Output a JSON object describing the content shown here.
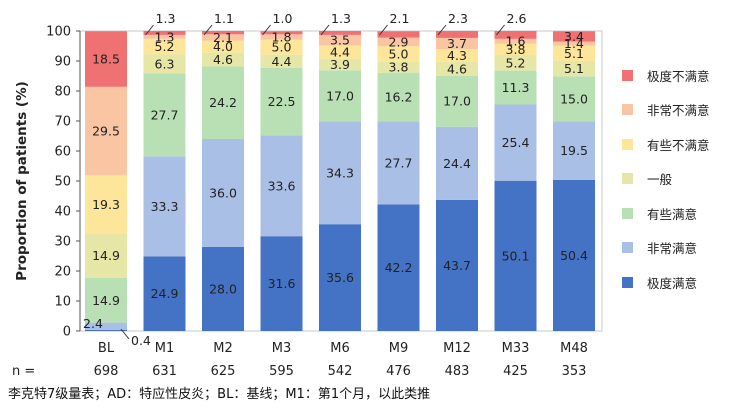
{
  "chart_data": {
    "type": "bar",
    "stacked": true,
    "ylabel": "Proportion of patients (%)",
    "ylim": [
      0,
      100
    ],
    "yticks": [
      0,
      10,
      20,
      30,
      40,
      50,
      60,
      70,
      80,
      90,
      100
    ],
    "categories": [
      "BL",
      "M1",
      "M2",
      "M3",
      "M6",
      "M9",
      "M12",
      "M33",
      "M48"
    ],
    "n_label": "n =",
    "n_values": [
      "698",
      "631",
      "625",
      "595",
      "542",
      "476",
      "483",
      "425",
      "353"
    ],
    "legend_position": "right",
    "series": [
      {
        "name": "极度满意",
        "color": "#4472c4",
        "values": [
          0.4,
          24.9,
          28.0,
          31.6,
          35.6,
          42.2,
          43.7,
          50.1,
          50.4
        ],
        "labels": [
          "0.4",
          "24.9",
          "28.0",
          "31.6",
          "35.6",
          "42.2",
          "43.7",
          "50.1",
          "50.4"
        ]
      },
      {
        "name": "非常满意",
        "color": "#a9bfe6",
        "values": [
          2.4,
          33.3,
          36.0,
          33.6,
          34.3,
          27.7,
          24.4,
          25.4,
          19.5
        ],
        "labels": [
          "2.4",
          "33.3",
          "36.0",
          "33.6",
          "34.3",
          "27.7",
          "24.4",
          "25.4",
          "19.5"
        ]
      },
      {
        "name": "有些满意",
        "color": "#b9e0b4",
        "values": [
          14.9,
          27.7,
          24.2,
          22.5,
          17.0,
          16.2,
          17.0,
          11.3,
          15.0
        ],
        "labels": [
          "14.9",
          "27.7",
          "24.2",
          "22.5",
          "17.0",
          "16.2",
          "17.0",
          "11.3",
          "15.0"
        ]
      },
      {
        "name": "一般",
        "color": "#e6e7a6",
        "values": [
          14.9,
          6.3,
          4.6,
          4.4,
          3.9,
          3.8,
          4.6,
          5.2,
          5.1
        ],
        "labels": [
          "14.9",
          "6.3",
          "4.6",
          "4.4",
          "3.9",
          "3.8",
          "4.6",
          "5.2",
          "5.1"
        ]
      },
      {
        "name": "有些不满意",
        "color": "#fde699",
        "values": [
          19.3,
          5.2,
          4.0,
          5.0,
          4.4,
          5.0,
          4.3,
          3.8,
          5.1
        ],
        "labels": [
          "19.3",
          "5.2",
          "4.0",
          "5.0",
          "4.4",
          "5.0",
          "4.3",
          "3.8",
          "5.1"
        ]
      },
      {
        "name": "非常不满意",
        "color": "#f9c5a2",
        "values": [
          29.5,
          1.3,
          2.1,
          1.8,
          3.5,
          2.9,
          3.7,
          1.6,
          1.4
        ],
        "labels": [
          "29.5",
          "1.3",
          "2.1",
          "1.8",
          "3.5",
          "2.9",
          "3.7",
          "1.6",
          "1.4"
        ]
      },
      {
        "name": "极度不满意",
        "color": "#f07171",
        "values": [
          18.5,
          1.3,
          1.1,
          1.0,
          1.3,
          2.1,
          2.3,
          2.6,
          3.4
        ],
        "labels": [
          "18.5",
          "1.3",
          "1.1",
          "1.0",
          "1.3",
          "2.1",
          "2.3",
          "2.6",
          "3.4"
        ]
      }
    ]
  },
  "footnote": "李克特7级量表；AD：特应性皮炎；BL：基线；M1：第1个月，以此类推"
}
